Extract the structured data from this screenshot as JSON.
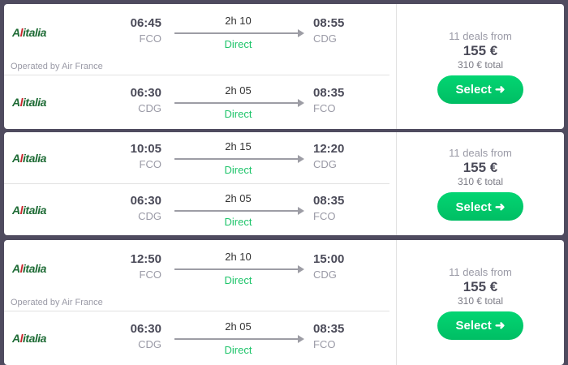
{
  "results": [
    {
      "legs": [
        {
          "airline": "Alitalia",
          "dep_time": "06:45",
          "dep_airport": "FCO",
          "duration": "2h 10",
          "stops": "Direct",
          "arr_time": "08:55",
          "arr_airport": "CDG"
        },
        {
          "airline": "Alitalia",
          "dep_time": "06:30",
          "dep_airport": "CDG",
          "duration": "2h 05",
          "stops": "Direct",
          "arr_time": "08:35",
          "arr_airport": "FCO"
        }
      ],
      "operated_by": "Operated by Air France",
      "deals": "11 deals from",
      "price": "155 €",
      "total": "310 € total",
      "select_label": "Select ➜"
    },
    {
      "legs": [
        {
          "airline": "Alitalia",
          "dep_time": "10:05",
          "dep_airport": "FCO",
          "duration": "2h 15",
          "stops": "Direct",
          "arr_time": "12:20",
          "arr_airport": "CDG"
        },
        {
          "airline": "Alitalia",
          "dep_time": "06:30",
          "dep_airport": "CDG",
          "duration": "2h 05",
          "stops": "Direct",
          "arr_time": "08:35",
          "arr_airport": "FCO"
        }
      ],
      "deals": "11 deals from",
      "price": "155 €",
      "total": "310 € total",
      "select_label": "Select ➜"
    },
    {
      "legs": [
        {
          "airline": "Alitalia",
          "dep_time": "12:50",
          "dep_airport": "FCO",
          "duration": "2h 10",
          "stops": "Direct",
          "arr_time": "15:00",
          "arr_airport": "CDG"
        },
        {
          "airline": "Alitalia",
          "dep_time": "06:30",
          "dep_airport": "CDG",
          "duration": "2h 05",
          "stops": "Direct",
          "arr_time": "08:35",
          "arr_airport": "FCO"
        }
      ],
      "operated_by": "Operated by Air France",
      "deals": "11 deals from",
      "price": "155 €",
      "total": "310 € total",
      "select_label": "Select ➜"
    }
  ],
  "colors": {
    "background": "#4f4b5f",
    "accent": "#00c96a"
  }
}
